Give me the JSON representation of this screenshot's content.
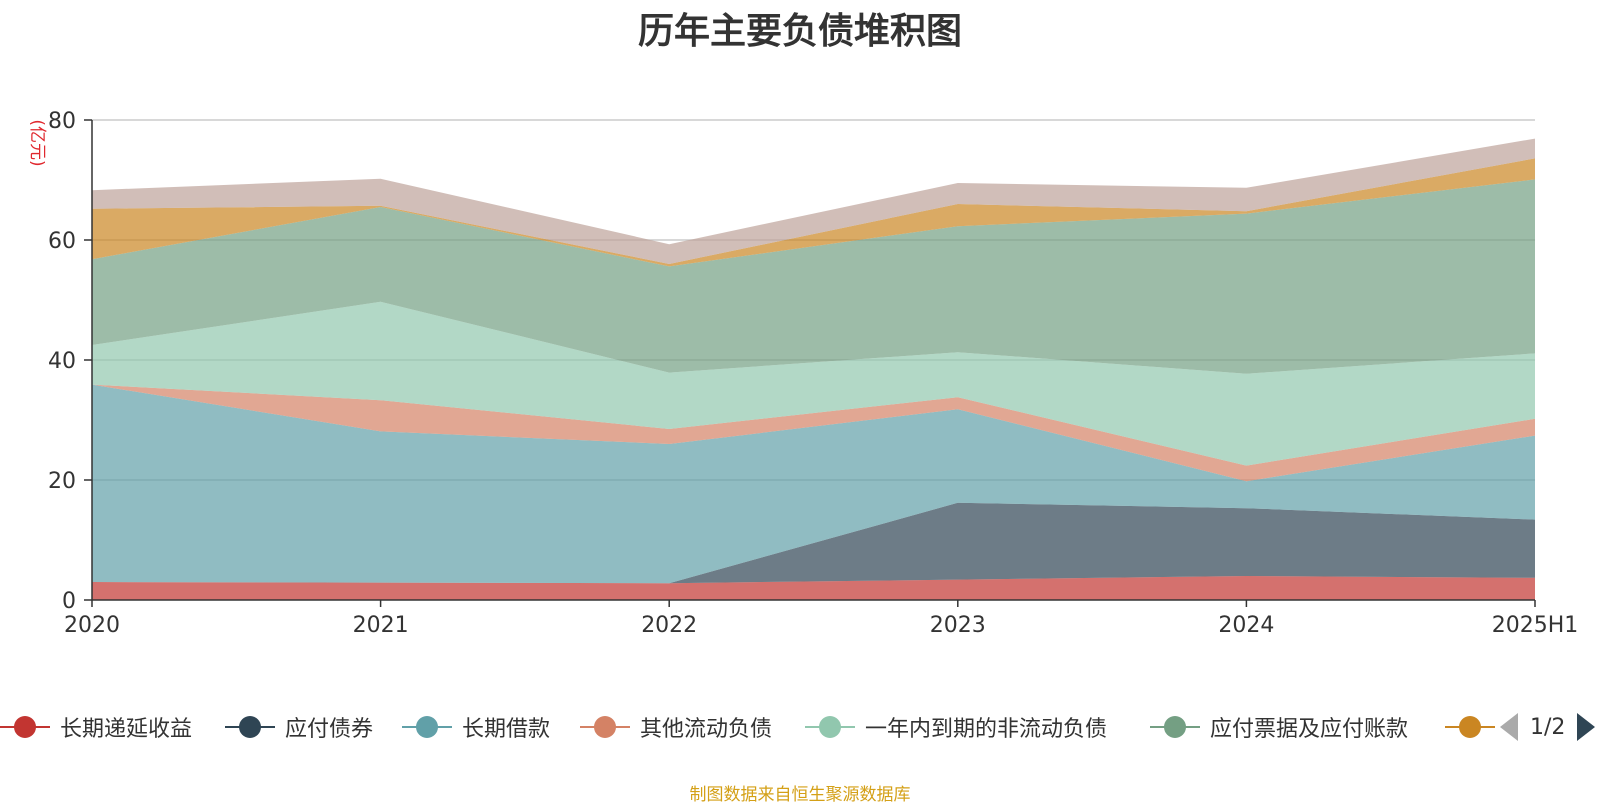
{
  "chart_data": {
    "type": "area",
    "stacked": true,
    "title": "历年主要负债堆积图",
    "ylabel": "(亿元)",
    "ylim": [
      0,
      80
    ],
    "yticks": [
      "0",
      "20",
      "40",
      "60",
      "80"
    ],
    "categories": [
      "2020",
      "2021",
      "2022",
      "2023",
      "2024",
      "2025H1"
    ],
    "grid": true,
    "legend_position": "bottom",
    "series": [
      {
        "name": "长期递延收益",
        "color": "#c23531",
        "values": [
          3.0,
          2.9,
          2.8,
          3.4,
          4.0,
          3.7
        ]
      },
      {
        "name": "应付债券",
        "color": "#2f4554",
        "values": [
          0,
          0,
          0,
          12.8,
          11.3,
          9.7
        ]
      },
      {
        "name": "长期借款",
        "color": "#61a0a8",
        "values": [
          32.9,
          25.2,
          23.2,
          15.6,
          4.5,
          14.0
        ]
      },
      {
        "name": "其他流动负债",
        "color": "#d48265",
        "values": [
          0,
          5.2,
          2.5,
          2.0,
          2.6,
          2.8
        ]
      },
      {
        "name": "一年内到期的非流动负债",
        "color": "#91c7ae",
        "values": [
          6.6,
          16.4,
          9.4,
          7.5,
          15.3,
          10.9
        ]
      },
      {
        "name": "应付票据及应付账款",
        "color": "#749f83",
        "values": [
          14.3,
          15.8,
          17.7,
          21.0,
          26.7,
          29.0
        ]
      },
      {
        "name": "",
        "color": "#ca8622",
        "values": [
          8.4,
          0.2,
          0.4,
          3.7,
          0.4,
          3.5
        ]
      },
      {
        "name": "",
        "color": "#bda29a",
        "values": [
          3.1,
          4.5,
          3.3,
          3.5,
          3.9,
          3.3
        ]
      }
    ]
  },
  "legend": {
    "page_text": "1/2"
  },
  "footer": {
    "note": "制图数据来自恒生聚源数据库"
  }
}
